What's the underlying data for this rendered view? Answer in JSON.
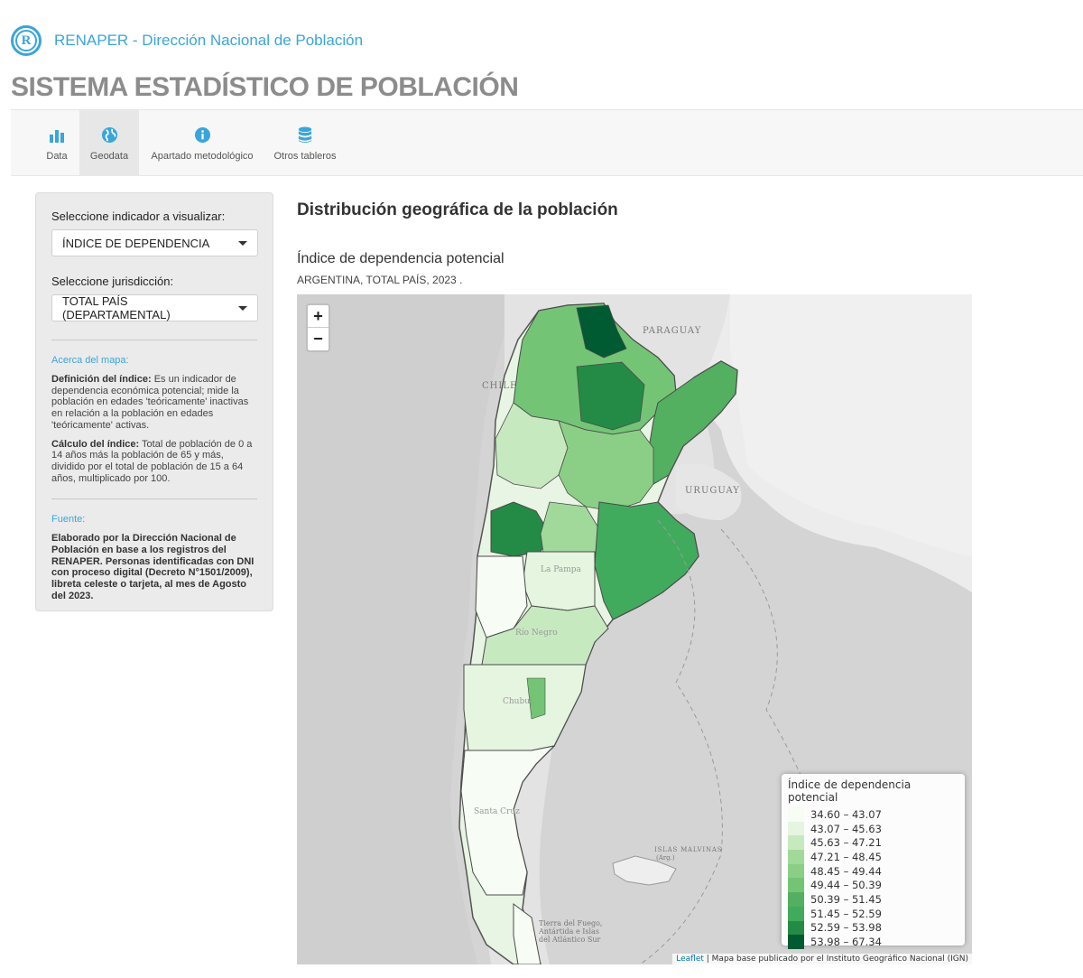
{
  "header": {
    "brand": "RENAPER - Dirección Nacional de Población",
    "logo_letter": "R",
    "system_title": "SISTEMA ESTADÍSTICO DE POBLACIÓN"
  },
  "nav": {
    "items": [
      {
        "label": "Data",
        "icon": "bar-chart-icon"
      },
      {
        "label": "Geodata",
        "icon": "globe-icon"
      },
      {
        "label": "Apartado metodológico",
        "icon": "info-icon"
      },
      {
        "label": "Otros tableros",
        "icon": "database-icon"
      }
    ],
    "active": "Geodata"
  },
  "sidebar": {
    "indicator_label": "Seleccione indicador a visualizar:",
    "indicator_value": "ÍNDICE DE DEPENDENCIA",
    "jurisdiction_label": "Seleccione jurisdicción:",
    "jurisdiction_value": "TOTAL PAÍS (DEPARTAMENTAL)",
    "about_heading": "Acerca del mapa:",
    "definition_label": "Definición del índice:",
    "definition_text": "Es un indicador de dependencia económica potencial; mide la población en edades 'teóricamente' inactivas en relación a la población en edades 'teóricamente' activas.",
    "calculation_label": "Cálculo del índice:",
    "calculation_text": "Total de población de 0 a 14 años más la población de 65 y más, dividido por el total de población de 15 a 64 años, multiplicado por 100.",
    "source_heading": "Fuente:",
    "source_text": "Elaborado por la Dirección Nacional de Población en base a los registros del RENAPER. Personas identificadas con DNI con proceso digital (Decreto N°1501/2009), libreta celeste o tarjeta, al mes de Agosto del 2023."
  },
  "main": {
    "title": "Distribución geográfica de la población",
    "map_title": "Índice de dependencia potencial",
    "map_subtitle": "ARGENTINA, TOTAL PAÍS, 2023 ."
  },
  "map": {
    "zoom_in": "+",
    "zoom_out": "−",
    "labels": {
      "paraguay": "PARAGUAY",
      "chile": "CHILE",
      "uruguay": "URUGUAY",
      "la_pampa": "La Pampa",
      "rio_negro": "Río Negro",
      "chubut": "Chubut",
      "santa_cruz": "Santa Cruz",
      "malvinas": "ISLAS MALVINAS",
      "malvinas_note": "(Arg.)",
      "tdf_1": "Tierra del Fuego,",
      "tdf_2": "Antártida e Islas",
      "tdf_3": "del Atlántico Sur"
    },
    "legend": {
      "title": "Índice de dependencia potencial",
      "classes": [
        {
          "range": "34.60 – 43.07",
          "color": "#f7fcf5"
        },
        {
          "range": "43.07 – 45.63",
          "color": "#e5f5e0"
        },
        {
          "range": "45.63 – 47.21",
          "color": "#c7e9c0"
        },
        {
          "range": "47.21 – 48.45",
          "color": "#a1d99b"
        },
        {
          "range": "48.45 – 49.44",
          "color": "#8bcf87"
        },
        {
          "range": "49.44 – 50.39",
          "color": "#74c476"
        },
        {
          "range": "50.39 – 51.45",
          "color": "#52b060"
        },
        {
          "range": "51.45 – 52.59",
          "color": "#41ab5d"
        },
        {
          "range": "52.59 – 53.98",
          "color": "#238b45"
        },
        {
          "range": "53.98 – 67.34",
          "color": "#005a32"
        }
      ]
    },
    "attribution_link": "Leaflet",
    "attribution_text": " | Mapa base publicado por el Instituto Geográfico Nacional (IGN)"
  }
}
